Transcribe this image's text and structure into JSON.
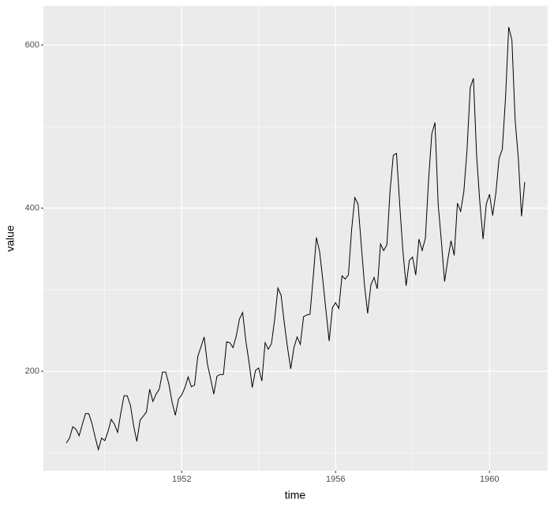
{
  "chart_data": {
    "type": "line",
    "x_label": "time",
    "y_label": "value",
    "x": [
      1949,
      1949.083,
      1949.167,
      1949.25,
      1949.333,
      1949.417,
      1949.5,
      1949.583,
      1949.667,
      1949.75,
      1949.833,
      1949.917,
      1950,
      1950.083,
      1950.167,
      1950.25,
      1950.333,
      1950.417,
      1950.5,
      1950.583,
      1950.667,
      1950.75,
      1950.833,
      1950.917,
      1951,
      1951.083,
      1951.167,
      1951.25,
      1951.333,
      1951.417,
      1951.5,
      1951.583,
      1951.667,
      1951.75,
      1951.833,
      1951.917,
      1952,
      1952.083,
      1952.167,
      1952.25,
      1952.333,
      1952.417,
      1952.5,
      1952.583,
      1952.667,
      1952.75,
      1952.833,
      1952.917,
      1953,
      1953.083,
      1953.167,
      1953.25,
      1953.333,
      1953.417,
      1953.5,
      1953.583,
      1953.667,
      1953.75,
      1953.833,
      1953.917,
      1954,
      1954.083,
      1954.167,
      1954.25,
      1954.333,
      1954.417,
      1954.5,
      1954.583,
      1954.667,
      1954.75,
      1954.833,
      1954.917,
      1955,
      1955.083,
      1955.167,
      1955.25,
      1955.333,
      1955.417,
      1955.5,
      1955.583,
      1955.667,
      1955.75,
      1955.833,
      1955.917,
      1956,
      1956.083,
      1956.167,
      1956.25,
      1956.333,
      1956.417,
      1956.5,
      1956.583,
      1956.667,
      1956.75,
      1956.833,
      1956.917,
      1957,
      1957.083,
      1957.167,
      1957.25,
      1957.333,
      1957.417,
      1957.5,
      1957.583,
      1957.667,
      1957.75,
      1957.833,
      1957.917,
      1958,
      1958.083,
      1958.167,
      1958.25,
      1958.333,
      1958.417,
      1958.5,
      1958.583,
      1958.667,
      1958.75,
      1958.833,
      1958.917,
      1959,
      1959.083,
      1959.167,
      1959.25,
      1959.333,
      1959.417,
      1959.5,
      1959.583,
      1959.667,
      1959.75,
      1959.833,
      1959.917,
      1960,
      1960.083,
      1960.167,
      1960.25,
      1960.333,
      1960.417,
      1960.5,
      1960.583,
      1960.667,
      1960.75,
      1960.833,
      1960.917
    ],
    "values": [
      112,
      118,
      132,
      129,
      121,
      135,
      148,
      148,
      136,
      119,
      104,
      118,
      115,
      126,
      141,
      135,
      125,
      149,
      170,
      170,
      158,
      133,
      114,
      140,
      145,
      150,
      178,
      163,
      172,
      178,
      199,
      199,
      184,
      162,
      146,
      166,
      171,
      180,
      193,
      181,
      183,
      218,
      230,
      242,
      209,
      191,
      172,
      194,
      196,
      196,
      236,
      235,
      229,
      243,
      264,
      272,
      237,
      211,
      180,
      201,
      204,
      188,
      235,
      227,
      234,
      264,
      302,
      293,
      259,
      229,
      203,
      229,
      242,
      233,
      267,
      269,
      270,
      315,
      364,
      347,
      312,
      274,
      237,
      278,
      284,
      277,
      317,
      313,
      318,
      374,
      413,
      405,
      355,
      306,
      271,
      306,
      315,
      301,
      356,
      348,
      355,
      422,
      465,
      467,
      404,
      347,
      305,
      336,
      340,
      318,
      362,
      348,
      363,
      435,
      491,
      505,
      404,
      359,
      310,
      337,
      360,
      342,
      406,
      396,
      420,
      472,
      548,
      559,
      463,
      407,
      362,
      405,
      417,
      391,
      419,
      461,
      472,
      535,
      622,
      606,
      508,
      461,
      390,
      432
    ],
    "color": "#000000",
    "xlim": [
      1948.404,
      1961.513
    ],
    "ylim": [
      78.1,
      647.9
    ],
    "xticks": [
      1952,
      1956,
      1960
    ],
    "yticks": [
      200,
      400,
      600
    ],
    "x_minor_grid": [
      1950,
      1954,
      1958
    ],
    "y_minor_grid": [
      100,
      300,
      500
    ],
    "grid": true
  }
}
